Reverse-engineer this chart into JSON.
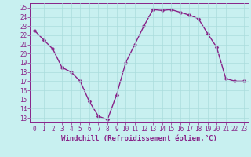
{
  "x": [
    0,
    1,
    2,
    3,
    4,
    5,
    6,
    7,
    8,
    9,
    10,
    11,
    12,
    13,
    14,
    15,
    16,
    17,
    18,
    19,
    20,
    21,
    22,
    23
  ],
  "y": [
    22.5,
    21.5,
    20.5,
    18.5,
    18.0,
    17.0,
    14.8,
    13.2,
    12.8,
    15.5,
    19.0,
    21.0,
    23.0,
    24.8,
    24.7,
    24.8,
    24.5,
    24.2,
    23.8,
    22.2,
    20.7,
    17.3,
    17.0,
    17.0
  ],
  "line_color": "#882288",
  "marker": "D",
  "marker_size": 2.5,
  "linewidth": 1.0,
  "xlabel": "Windchill (Refroidissement éolien,°C)",
  "xlabel_fontsize": 6.5,
  "background_color": "#c8f0f0",
  "grid_color": "#aadddd",
  "yticks": [
    13,
    14,
    15,
    16,
    17,
    18,
    19,
    20,
    21,
    22,
    23,
    24,
    25
  ],
  "xticks": [
    0,
    1,
    2,
    3,
    4,
    5,
    6,
    7,
    8,
    9,
    10,
    11,
    12,
    13,
    14,
    15,
    16,
    17,
    18,
    19,
    20,
    21,
    22,
    23
  ],
  "ylim": [
    12.5,
    25.5
  ],
  "xlim": [
    -0.5,
    23.5
  ],
  "tick_fontsize": 5.5,
  "tick_color": "#882288",
  "spine_color": "#882288",
  "xlabel_bold": true
}
